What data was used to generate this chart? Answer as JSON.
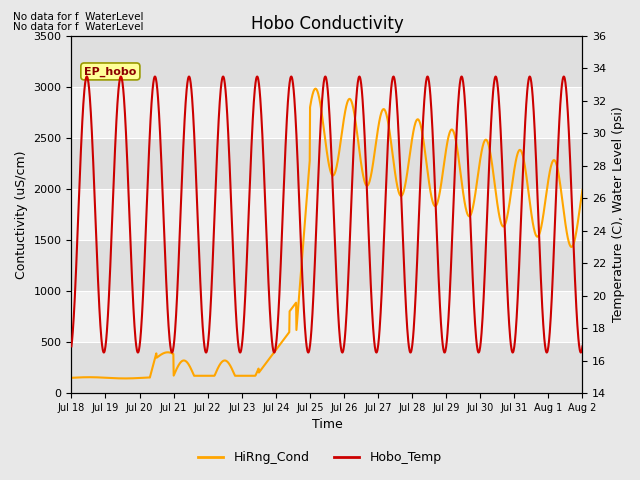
{
  "title": "Hobo Conductivity",
  "xlabel": "Time",
  "ylabel_left": "Contuctivity (uS/cm)",
  "ylabel_right": "Temperature (C), Water Level (psi)",
  "annotation_line1": "No data for f  WaterLevel",
  "annotation_line2": "No data for f  WaterLevel",
  "box_label": "EP_hobo",
  "ylim_left": [
    0,
    3500
  ],
  "ylim_right": [
    14,
    36
  ],
  "yticks_left": [
    0,
    500,
    1000,
    1500,
    2000,
    2500,
    3000,
    3500
  ],
  "yticks_right": [
    14,
    16,
    18,
    20,
    22,
    24,
    26,
    28,
    30,
    32,
    34,
    36
  ],
  "bg_color": "#e8e8e8",
  "plot_bg_color": "#f0f0f0",
  "cond_color": "#FFA500",
  "temp_color": "#CC0000",
  "legend_label_cond": "HiRng_Cond",
  "legend_label_temp": "Hobo_Temp",
  "grid_color": "#ffffff",
  "hspan_color": "#d8d8d8",
  "x_tick_labels": [
    "Jul 18",
    "Jul 19",
    "Jul 20",
    "Jul 21",
    "Jul 22",
    "Jul 23",
    "Jul 24",
    "Jul 25",
    "Jul 26",
    "Jul 27",
    "Jul 28",
    "Jul 29",
    "Jul 30",
    "Jul 31",
    "Aug 1",
    "Aug 2"
  ]
}
